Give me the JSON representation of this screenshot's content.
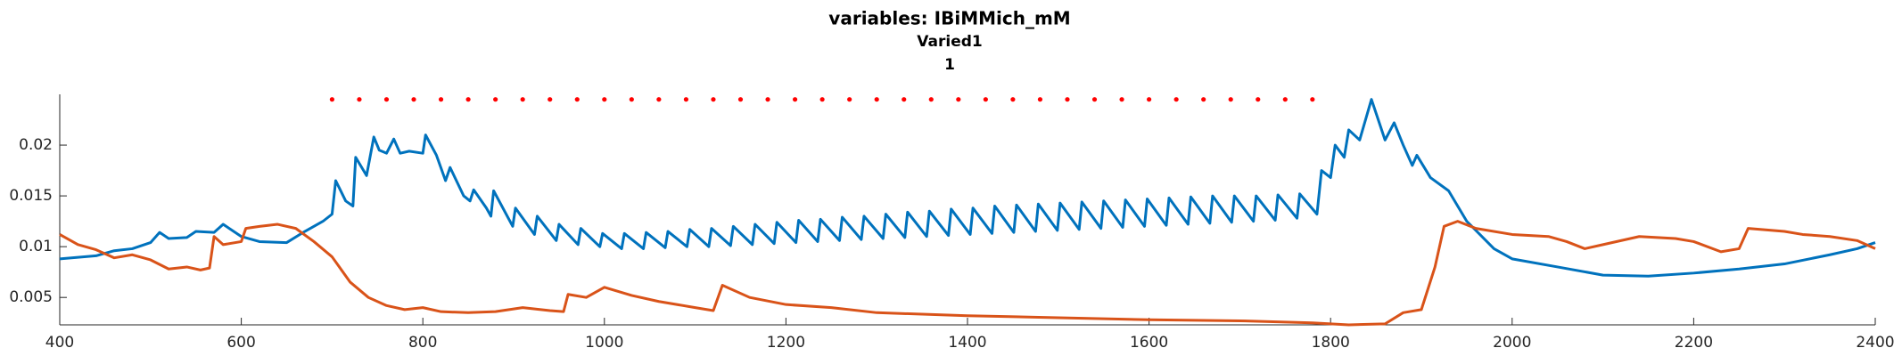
{
  "chart_data": {
    "type": "line",
    "title": [
      "variables: IBiMMich_mM",
      "Varied1",
      "1"
    ],
    "xlim": [
      400,
      2400
    ],
    "xticks": [
      400,
      600,
      800,
      1000,
      1200,
      1400,
      1600,
      1800,
      2000,
      2200,
      2400
    ],
    "ylim": [
      0.0023,
      0.025
    ],
    "yticks": [
      0.005,
      0.01,
      0.015,
      0.02
    ],
    "series": [
      {
        "color": "#0072BD",
        "marker": "none",
        "x": [
          400,
          440,
          460,
          480,
          500,
          510,
          520,
          540,
          550,
          570,
          580,
          600,
          620,
          650,
          670,
          690,
          700,
          704,
          715,
          723,
          726,
          738,
          746,
          752,
          760,
          768,
          775,
          785,
          800,
          803,
          815,
          825,
          830,
          845,
          852,
          856,
          870,
          875,
          878,
          899,
          902,
          923,
          926,
          947,
          950,
          971,
          974,
          995,
          998,
          1019,
          1022,
          1043,
          1046,
          1067,
          1070,
          1091,
          1094,
          1115,
          1118,
          1139,
          1142,
          1163,
          1166,
          1187,
          1190,
          1211,
          1214,
          1235,
          1238,
          1259,
          1262,
          1283,
          1286,
          1307,
          1310,
          1331,
          1334,
          1355,
          1358,
          1379,
          1382,
          1403,
          1406,
          1427,
          1430,
          1451,
          1454,
          1475,
          1478,
          1499,
          1502,
          1523,
          1526,
          1547,
          1550,
          1571,
          1574,
          1595,
          1598,
          1619,
          1622,
          1643,
          1646,
          1667,
          1670,
          1691,
          1694,
          1715,
          1718,
          1739,
          1742,
          1763,
          1766,
          1785,
          1790,
          1800,
          1805,
          1815,
          1820,
          1832,
          1845,
          1860,
          1870,
          1880,
          1890,
          1895,
          1910,
          1930,
          1950,
          1980,
          2000,
          2050,
          2100,
          2150,
          2200,
          2250,
          2300,
          2350,
          2380,
          2400
        ],
        "values": [
          0.0088,
          0.0091,
          0.0096,
          0.0098,
          0.0104,
          0.0114,
          0.0108,
          0.0109,
          0.0115,
          0.0114,
          0.0122,
          0.011,
          0.0105,
          0.0104,
          0.0115,
          0.0125,
          0.0132,
          0.0165,
          0.0145,
          0.014,
          0.0188,
          0.017,
          0.0208,
          0.0195,
          0.0192,
          0.0206,
          0.0192,
          0.0194,
          0.0192,
          0.021,
          0.019,
          0.0165,
          0.0178,
          0.015,
          0.0145,
          0.0156,
          0.0138,
          0.013,
          0.0155,
          0.012,
          0.0138,
          0.0112,
          0.013,
          0.0106,
          0.0122,
          0.0102,
          0.0118,
          0.01,
          0.0113,
          0.0098,
          0.0113,
          0.0098,
          0.0114,
          0.0099,
          0.0115,
          0.01,
          0.0117,
          0.01,
          0.0118,
          0.0101,
          0.012,
          0.0102,
          0.0122,
          0.0103,
          0.0124,
          0.0104,
          0.0126,
          0.0105,
          0.0127,
          0.0106,
          0.0129,
          0.0107,
          0.013,
          0.0108,
          0.0132,
          0.0109,
          0.0134,
          0.011,
          0.0135,
          0.0111,
          0.0137,
          0.0112,
          0.0138,
          0.0113,
          0.014,
          0.0114,
          0.0141,
          0.0115,
          0.0142,
          0.0116,
          0.0143,
          0.0117,
          0.0144,
          0.0118,
          0.0145,
          0.0119,
          0.0146,
          0.012,
          0.0147,
          0.0121,
          0.0148,
          0.0122,
          0.0149,
          0.0123,
          0.015,
          0.0124,
          0.015,
          0.0125,
          0.015,
          0.0126,
          0.0151,
          0.0128,
          0.0152,
          0.0132,
          0.0175,
          0.0168,
          0.02,
          0.0188,
          0.0215,
          0.0205,
          0.0245,
          0.0205,
          0.0222,
          0.02,
          0.018,
          0.019,
          0.0168,
          0.0155,
          0.0125,
          0.0098,
          0.0088,
          0.008,
          0.0072,
          0.0071,
          0.0074,
          0.0078,
          0.0083,
          0.0092,
          0.0098,
          0.0104
        ]
      },
      {
        "color": "#D95319",
        "marker": "none",
        "x": [
          400,
          420,
          440,
          460,
          480,
          500,
          520,
          540,
          555,
          565,
          570,
          580,
          600,
          605,
          620,
          640,
          660,
          680,
          700,
          720,
          740,
          760,
          780,
          800,
          820,
          850,
          880,
          910,
          940,
          955,
          960,
          980,
          1000,
          1030,
          1060,
          1100,
          1120,
          1130,
          1160,
          1200,
          1250,
          1300,
          1400,
          1500,
          1600,
          1700,
          1780,
          1820,
          1860,
          1880,
          1900,
          1915,
          1925,
          1940,
          1960,
          2000,
          2040,
          2060,
          2080,
          2100,
          2140,
          2180,
          2200,
          2230,
          2250,
          2260,
          2300,
          2320,
          2350,
          2380,
          2400
        ],
        "values": [
          0.0112,
          0.0102,
          0.0097,
          0.0089,
          0.0092,
          0.0087,
          0.0078,
          0.008,
          0.0077,
          0.0079,
          0.011,
          0.0102,
          0.0105,
          0.0118,
          0.012,
          0.0122,
          0.0118,
          0.0105,
          0.009,
          0.0065,
          0.005,
          0.0042,
          0.0038,
          0.004,
          0.0036,
          0.0035,
          0.0036,
          0.004,
          0.0037,
          0.0036,
          0.0053,
          0.005,
          0.006,
          0.0052,
          0.0046,
          0.004,
          0.0037,
          0.0062,
          0.005,
          0.0043,
          0.004,
          0.0035,
          0.0032,
          0.003,
          0.0028,
          0.0027,
          0.0025,
          0.0023,
          0.0024,
          0.0035,
          0.0038,
          0.008,
          0.012,
          0.0125,
          0.0118,
          0.0112,
          0.011,
          0.0105,
          0.0098,
          0.0102,
          0.011,
          0.0108,
          0.0105,
          0.0095,
          0.0098,
          0.0118,
          0.0115,
          0.0112,
          0.011,
          0.0106,
          0.0098
        ]
      },
      {
        "color": "#FF0000",
        "marker": "dot",
        "x": [
          700,
          730,
          760,
          790,
          820,
          850,
          880,
          910,
          940,
          970,
          1000,
          1030,
          1060,
          1090,
          1120,
          1150,
          1180,
          1210,
          1240,
          1270,
          1300,
          1330,
          1360,
          1390,
          1420,
          1450,
          1480,
          1510,
          1540,
          1570,
          1600,
          1630,
          1660,
          1690,
          1720,
          1750,
          1780
        ],
        "values": [
          0.0245,
          0.0245,
          0.0245,
          0.0245,
          0.0245,
          0.0245,
          0.0245,
          0.0245,
          0.0245,
          0.0245,
          0.0245,
          0.0245,
          0.0245,
          0.0245,
          0.0245,
          0.0245,
          0.0245,
          0.0245,
          0.0245,
          0.0245,
          0.0245,
          0.0245,
          0.0245,
          0.0245,
          0.0245,
          0.0245,
          0.0245,
          0.0245,
          0.0245,
          0.0245,
          0.0245,
          0.0245,
          0.0245,
          0.0245,
          0.0245,
          0.0245,
          0.0245
        ]
      }
    ]
  }
}
